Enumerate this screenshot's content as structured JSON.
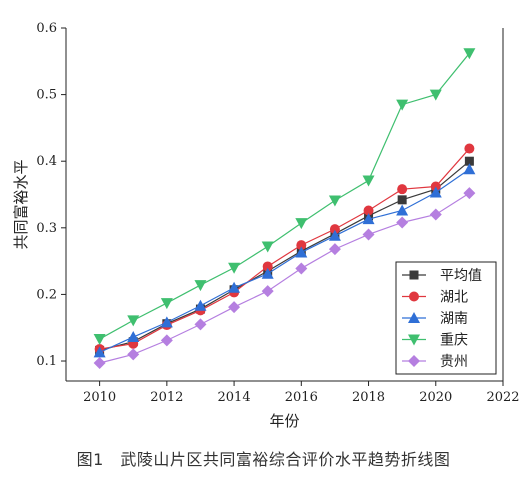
{
  "caption": "图1　武陵山片区共同富裕综合评价水平趋势折线图",
  "chart_data": {
    "type": "line",
    "xlabel": "年份",
    "ylabel": "共同富裕水平",
    "xlim": [
      2009,
      2022
    ],
    "ylim": [
      0.07,
      0.6
    ],
    "xticks": [
      2010,
      2012,
      2014,
      2016,
      2018,
      2020,
      2022
    ],
    "yticks": [
      0.1,
      0.2,
      0.3,
      0.4,
      0.5,
      0.6
    ],
    "ytick_labels": [
      "0.1",
      "0.2",
      "0.3",
      "0.4",
      "0.5",
      "0.6"
    ],
    "legend_position": "bottom-right",
    "x": [
      2010,
      2011,
      2012,
      2013,
      2014,
      2015,
      2016,
      2017,
      2018,
      2019,
      2020,
      2021
    ],
    "series": [
      {
        "name": "平均值",
        "marker": "square",
        "color": "#3a3a3a",
        "values": [
          0.116,
          0.129,
          0.156,
          0.178,
          0.207,
          0.235,
          0.265,
          0.291,
          0.318,
          0.342,
          0.358,
          0.4
        ]
      },
      {
        "name": "湖北",
        "marker": "circle",
        "color": "#e0373f",
        "values": [
          0.118,
          0.126,
          0.154,
          0.176,
          0.203,
          0.242,
          0.274,
          0.298,
          0.326,
          0.358,
          0.362,
          0.419
        ]
      },
      {
        "name": "湖南",
        "marker": "triangle-up",
        "color": "#2f6fd6",
        "values": [
          0.113,
          0.136,
          0.158,
          0.183,
          0.21,
          0.231,
          0.263,
          0.288,
          0.313,
          0.326,
          0.353,
          0.388
        ]
      },
      {
        "name": "重庆",
        "marker": "triangle-down",
        "color": "#3fbf6f",
        "values": [
          0.133,
          0.161,
          0.187,
          0.214,
          0.24,
          0.272,
          0.307,
          0.341,
          0.371,
          0.485,
          0.5,
          0.562
        ]
      },
      {
        "name": "贵州",
        "marker": "diamond",
        "color": "#b57fe0",
        "values": [
          0.097,
          0.11,
          0.131,
          0.155,
          0.181,
          0.205,
          0.239,
          0.268,
          0.29,
          0.308,
          0.32,
          0.352
        ]
      }
    ]
  }
}
